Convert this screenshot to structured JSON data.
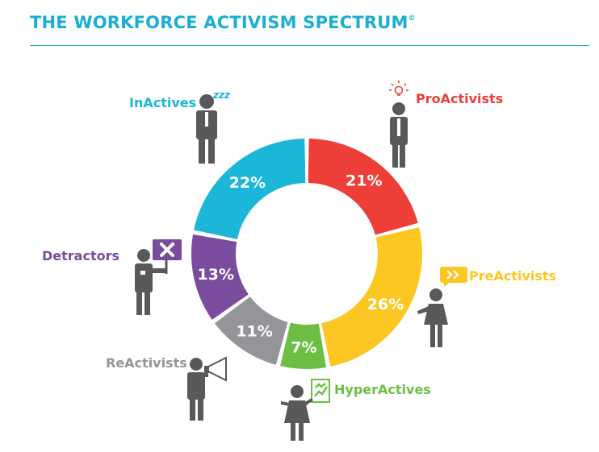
{
  "header": {
    "title": "THE WORKFORCE ACTIVISM SPECTRUM",
    "mark": "©"
  },
  "inactives_zzz": "zzz",
  "chart_data": {
    "type": "pie",
    "variant": "donut",
    "title": "THE WORKFORCE ACTIVISM SPECTRUM",
    "start": "12 o'clock, clockwise",
    "categories": [
      "ProActivists",
      "PreActivists",
      "HyperActives",
      "ReActivists",
      "Detractors",
      "InActives"
    ],
    "values": [
      21,
      26,
      7,
      11,
      13,
      22
    ],
    "value_labels": [
      "21%",
      "26%",
      "7%",
      "11%",
      "13%",
      "22%"
    ],
    "colors": [
      "#ee3e38",
      "#fcc623",
      "#6cbe45",
      "#939598",
      "#7a4c9e",
      "#1bb6d8"
    ]
  }
}
